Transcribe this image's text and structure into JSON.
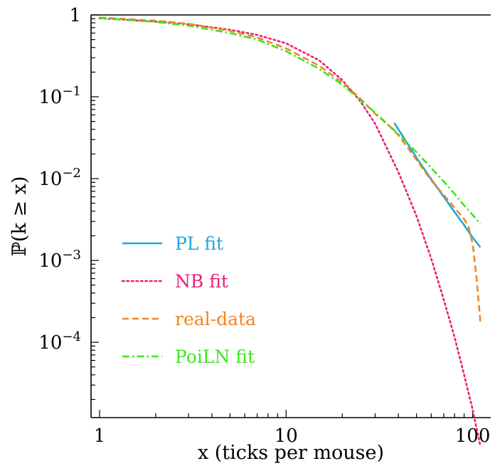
{
  "chart_data": {
    "type": "line",
    "xlabel": "x (ticks per mouse)",
    "ylabel": "ℙ(k ≥ x)",
    "xscale": "log",
    "yscale": "log",
    "xlim": [
      0.9,
      125
    ],
    "ylim": [
      1.2e-05,
      1
    ],
    "grid": false,
    "legend_position": "bottom-left",
    "x_ticks": [
      {
        "value": 1,
        "label": "1"
      },
      {
        "value": 10,
        "label": "10"
      },
      {
        "value": 100,
        "label": "100"
      }
    ],
    "y_ticks": [
      {
        "value": 1,
        "label": "1"
      },
      {
        "value": 0.1,
        "label": "10",
        "sup": "−1"
      },
      {
        "value": 0.01,
        "label": "10",
        "sup": "−2"
      },
      {
        "value": 0.001,
        "label": "10",
        "sup": "−3"
      },
      {
        "value": 0.0001,
        "label": "10",
        "sup": "−4"
      }
    ],
    "series": [
      {
        "name": "PL fit",
        "color": "#1ea7dd",
        "dash": "solid",
        "x": [
          38,
          50,
          60,
          70,
          80,
          90,
          100,
          110
        ],
        "y": [
          0.048,
          0.018,
          0.0098,
          0.006,
          0.0039,
          0.0027,
          0.0019,
          0.00145
        ]
      },
      {
        "name": "NB fit",
        "color": "#e8207a",
        "dash": "dotted",
        "x": [
          1,
          2,
          3,
          5,
          7,
          10,
          15,
          20,
          25,
          30,
          40,
          50,
          60,
          70,
          80,
          90,
          100,
          110
        ],
        "y": [
          0.91,
          0.83,
          0.77,
          0.66,
          0.57,
          0.45,
          0.28,
          0.16,
          0.088,
          0.047,
          0.012,
          0.0035,
          0.00105,
          0.00033,
          0.000115,
          4e-05,
          1.5e-05,
          5.4e-06
        ]
      },
      {
        "name": "real-data",
        "color": "#f28522",
        "dash": "dashed",
        "x": [
          1,
          2,
          3,
          5,
          7,
          10,
          15,
          20,
          25,
          30,
          35,
          40,
          50,
          60,
          70,
          80,
          90,
          95,
          100,
          105,
          110
        ],
        "y": [
          0.93,
          0.85,
          0.78,
          0.64,
          0.53,
          0.39,
          0.24,
          0.15,
          0.095,
          0.062,
          0.046,
          0.034,
          0.017,
          0.0095,
          0.0063,
          0.0044,
          0.0032,
          0.0026,
          0.0016,
          0.0006,
          0.00018
        ]
      },
      {
        "name": "PoiLN fit",
        "color": "#3ee61f",
        "dash": "dashdot",
        "x": [
          1,
          2,
          3,
          5,
          7,
          10,
          15,
          20,
          25,
          30,
          40,
          50,
          60,
          70,
          80,
          90,
          100,
          110
        ],
        "y": [
          0.92,
          0.82,
          0.74,
          0.6,
          0.5,
          0.36,
          0.22,
          0.14,
          0.092,
          0.064,
          0.035,
          0.021,
          0.0135,
          0.0092,
          0.0065,
          0.0047,
          0.0036,
          0.0028
        ]
      }
    ]
  }
}
